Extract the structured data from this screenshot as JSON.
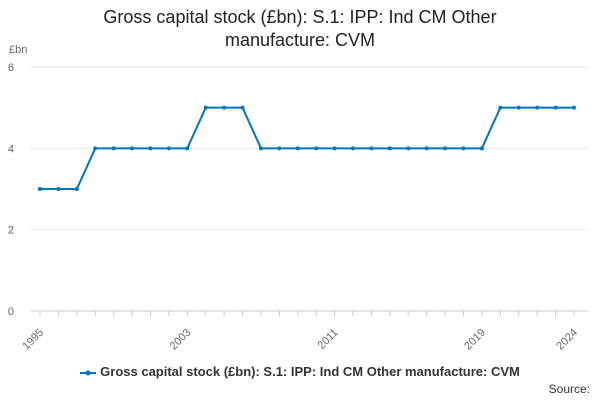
{
  "chart_data": {
    "type": "line",
    "title_line1": "Gross capital stock (£bn): S.1: IPP: Ind CM Other",
    "title_line2": "manufacture: CVM",
    "ylabel": "£bn",
    "ylim": [
      0,
      6
    ],
    "yticks": [
      "0",
      "2",
      "4",
      "6"
    ],
    "xlim": [
      1995,
      2024
    ],
    "xticks": [
      "1995",
      "2003",
      "2011",
      "2019",
      "2024"
    ],
    "grid": true,
    "legend_position": "bottom",
    "series": [
      {
        "name": "Gross capital stock (£bn): S.1: IPP: Ind CM Other manufacture: CVM",
        "color": "#0077b6",
        "x": [
          1995,
          1996,
          1997,
          1998,
          1999,
          2000,
          2001,
          2002,
          2003,
          2004,
          2005,
          2006,
          2007,
          2008,
          2009,
          2010,
          2011,
          2012,
          2013,
          2014,
          2015,
          2016,
          2017,
          2018,
          2019,
          2020,
          2021,
          2022,
          2023,
          2024
        ],
        "values": [
          3,
          3,
          3,
          4,
          4,
          4,
          4,
          4,
          4,
          5,
          5,
          5,
          4,
          4,
          4,
          4,
          4,
          4,
          4,
          4,
          4,
          4,
          4,
          4,
          4,
          5,
          5,
          5,
          5,
          5
        ]
      }
    ],
    "source_label": "Source:"
  }
}
